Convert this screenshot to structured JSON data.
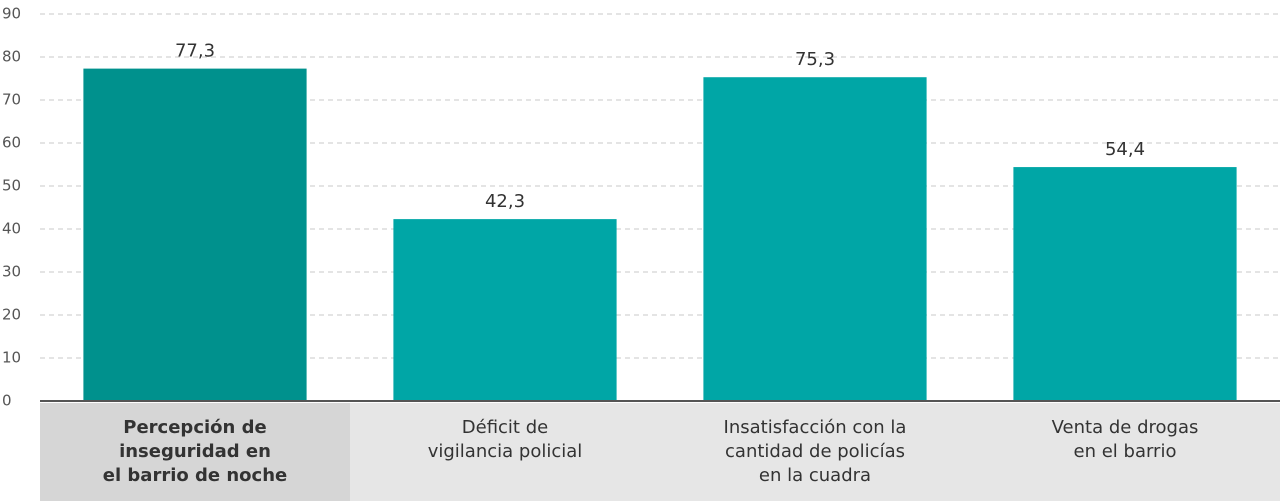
{
  "chart_data": {
    "type": "bar",
    "categories": [
      "Percepción de\ninseguridad en\nel barrio de noche",
      "Déficit de\nvigilancia policial",
      "Insatisfacción con la\ncantidad de policías\nen la cuadra",
      "Venta de drogas\nen el barrio"
    ],
    "values": [
      77.3,
      42.3,
      75.3,
      54.4
    ],
    "value_labels": [
      "77,3",
      "42,3",
      "75,3",
      "54,4"
    ],
    "colors": [
      "#00918d",
      "#00a6a6",
      "#00a6a6",
      "#00a6a6"
    ],
    "highlight": [
      true,
      false,
      false,
      false
    ],
    "ylim": [
      0,
      90
    ],
    "yticks": [
      0,
      10,
      20,
      30,
      40,
      50,
      60,
      70,
      80,
      90
    ],
    "grid": true
  }
}
